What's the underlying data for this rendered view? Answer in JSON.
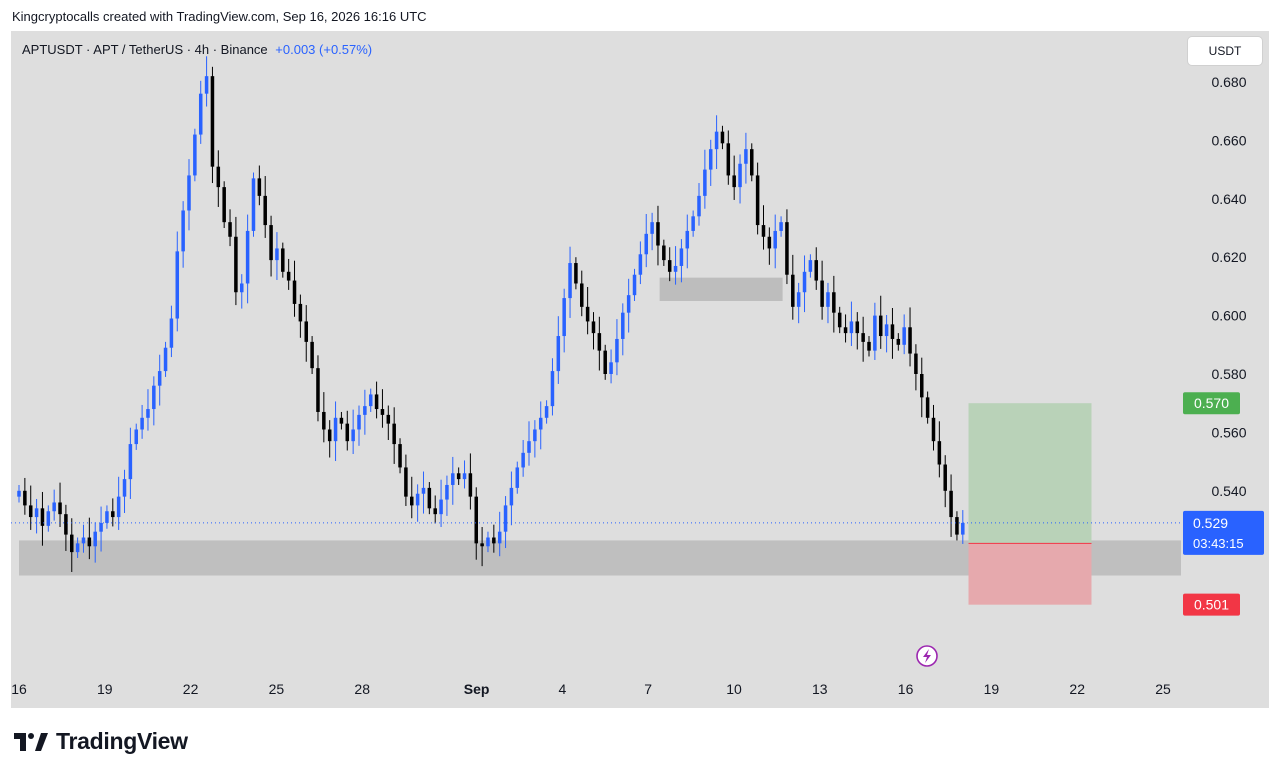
{
  "header": {
    "caption": "Kingcryptocalls created with TradingView.com, Sep 16, 2026 16:16 UTC"
  },
  "symbol": {
    "title": "APTUSDT · APT / TetherUS · 4h · Binance",
    "change": "+0.003 (+0.57%)"
  },
  "currency_button": "USDT",
  "brand": {
    "name": "TradingView",
    "logo_icon": "tradingview-logo-icon"
  },
  "colors": {
    "background": "#dedede",
    "up_candle": "#2962ff",
    "down_candle": "#000000",
    "target_zone": "#b9d2b8",
    "stop_zone": "#e6a9ad",
    "support_zone": "#bdbdbd",
    "target_badge": "#4caf50",
    "stop_badge": "#f23645",
    "price_badge": "#2962ff"
  },
  "chart_data": {
    "type": "candlestick",
    "title": "APTUSDT · APT / TetherUS · 4h · Binance",
    "y_axis": {
      "label": "USDT",
      "ticks": [
        0.68,
        0.66,
        0.64,
        0.62,
        0.6,
        0.58,
        0.56,
        0.54
      ],
      "tick_labels": [
        "0.680",
        "0.660",
        "0.640",
        "0.620",
        "0.600",
        "0.580",
        "0.560",
        "0.540"
      ],
      "range": [
        0.484,
        0.702
      ]
    },
    "x_axis": {
      "tick_labels": [
        "16",
        "19",
        "22",
        "25",
        "28",
        "Sep",
        "4",
        "7",
        "10",
        "13",
        "16",
        "19",
        "22",
        "25"
      ],
      "tick_days": [
        0,
        3,
        6,
        9,
        12,
        16,
        19,
        22,
        25,
        28,
        31,
        34,
        37,
        40
      ]
    },
    "grid": false,
    "current_price": {
      "value": 0.529,
      "label": "0.529",
      "countdown": "03:43:15"
    },
    "markers": {
      "target": {
        "value": 0.57,
        "label": "0.570"
      },
      "entry": {
        "value": 0.522,
        "label": "0.522"
      },
      "stop": {
        "value": 0.501,
        "label": "0.501"
      }
    },
    "zones": [
      {
        "name": "support-zone",
        "from_day": 0,
        "to_day": 100,
        "low": 0.511,
        "high": 0.523
      },
      {
        "name": "resistance-flip-zone",
        "from_day": 22.4,
        "to_day": 26.7,
        "low": 0.605,
        "high": 0.613
      },
      {
        "name": "target-zone",
        "from_day": 33.2,
        "to_day": 37.5,
        "low": 0.522,
        "high": 0.57
      },
      {
        "name": "stop-zone",
        "from_day": 33.2,
        "to_day": 37.5,
        "low": 0.501,
        "high": 0.522
      }
    ],
    "candle_days": [
      0.0,
      33.0
    ],
    "closes": [
      0.54,
      0.535,
      0.531,
      0.534,
      0.528,
      0.533,
      0.536,
      0.532,
      0.525,
      0.519,
      0.522,
      0.524,
      0.521,
      0.526,
      0.529,
      0.533,
      0.531,
      0.538,
      0.544,
      0.556,
      0.561,
      0.565,
      0.568,
      0.576,
      0.581,
      0.589,
      0.599,
      0.622,
      0.636,
      0.648,
      0.662,
      0.676,
      0.682,
      0.651,
      0.644,
      0.632,
      0.627,
      0.608,
      0.611,
      0.629,
      0.647,
      0.641,
      0.631,
      0.619,
      0.623,
      0.615,
      0.612,
      0.604,
      0.598,
      0.591,
      0.582,
      0.567,
      0.561,
      0.557,
      0.565,
      0.563,
      0.557,
      0.561,
      0.566,
      0.569,
      0.573,
      0.568,
      0.566,
      0.563,
      0.556,
      0.548,
      0.538,
      0.535,
      0.539,
      0.541,
      0.534,
      0.532,
      0.537,
      0.542,
      0.546,
      0.544,
      0.546,
      0.538,
      0.522,
      0.521,
      0.524,
      0.522,
      0.526,
      0.535,
      0.541,
      0.548,
      0.553,
      0.557,
      0.561,
      0.565,
      0.569,
      0.581,
      0.593,
      0.606,
      0.618,
      0.611,
      0.603,
      0.598,
      0.594,
      0.588,
      0.58,
      0.584,
      0.592,
      0.601,
      0.607,
      0.614,
      0.621,
      0.628,
      0.632,
      0.624,
      0.619,
      0.615,
      0.617,
      0.623,
      0.629,
      0.634,
      0.641,
      0.65,
      0.657,
      0.663,
      0.659,
      0.648,
      0.644,
      0.652,
      0.657,
      0.648,
      0.631,
      0.627,
      0.623,
      0.629,
      0.632,
      0.614,
      0.603,
      0.608,
      0.615,
      0.619,
      0.612,
      0.603,
      0.608,
      0.601,
      0.596,
      0.594,
      0.598,
      0.594,
      0.591,
      0.588,
      0.6,
      0.593,
      0.597,
      0.592,
      0.59,
      0.596,
      0.587,
      0.58,
      0.572,
      0.565,
      0.557,
      0.549,
      0.54,
      0.531,
      0.525,
      0.529
    ]
  }
}
